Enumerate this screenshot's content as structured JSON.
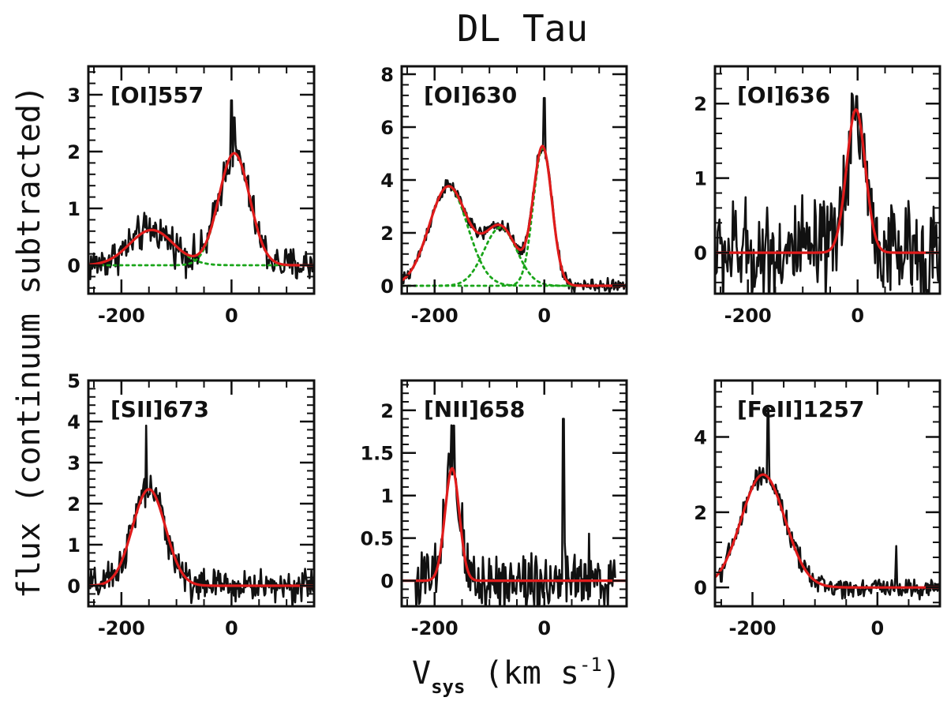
{
  "figure": {
    "title": "DL Tau",
    "xlabel_main": "V",
    "xlabel_sub": "sys",
    "xlabel_units": "(km s",
    "xlabel_exp": "-1",
    "xlabel_close": ")",
    "ylabel": "flux (continuum subtracted)"
  },
  "colors": {
    "observed": "#111111",
    "fit": "#e01b1b",
    "component": "#1aa51a"
  },
  "chart_data": [
    {
      "type": "line",
      "label": "[OI]557",
      "xlim": [
        -260,
        150
      ],
      "ylim": [
        -0.5,
        3.5
      ],
      "xticks": [
        -200,
        0
      ],
      "xticklabels": [
        "-200",
        "0"
      ],
      "yticks": [
        0,
        1,
        2,
        3
      ],
      "yticklabels": [
        "0",
        "1",
        "2",
        "3"
      ],
      "fit_components": [
        {
          "amp": 0.62,
          "center": -145,
          "sigma": 40
        },
        {
          "amp": 1.97,
          "center": 5,
          "sigma": 28
        }
      ],
      "show_components": true,
      "noise": 0.35,
      "data_range": [
        -260,
        150
      ],
      "peaks": [
        {
          "x": 0,
          "y": 2.9
        },
        {
          "x": 5,
          "y": 2.6
        }
      ]
    },
    {
      "type": "line",
      "label": "[OI]630",
      "xlim": [
        -260,
        150
      ],
      "ylim": [
        -0.3,
        8.3
      ],
      "xticks": [
        -200,
        0
      ],
      "xticklabels": [
        "-200",
        "0"
      ],
      "yticks": [
        0,
        2,
        4,
        6,
        8
      ],
      "yticklabels": [
        "0",
        "2",
        "4",
        "6",
        "8"
      ],
      "fit_components": [
        {
          "amp": 3.75,
          "center": -175,
          "sigma": 35
        },
        {
          "amp": 2.2,
          "center": -80,
          "sigma": 30
        },
        {
          "amp": 5.2,
          "center": -3,
          "sigma": 17
        }
      ],
      "show_components": true,
      "noise": 0.28,
      "data_range": [
        -260,
        150
      ],
      "peaks": [
        {
          "x": 0,
          "y": 7.1
        }
      ]
    },
    {
      "type": "line",
      "label": "[OI]636",
      "xlim": [
        -260,
        150
      ],
      "ylim": [
        -0.55,
        2.5
      ],
      "xticks": [
        -200,
        0
      ],
      "xticklabels": [
        "-200",
        "0"
      ],
      "yticks": [
        0,
        1,
        2
      ],
      "yticklabels": [
        "0",
        "1",
        "2"
      ],
      "fit_components": [
        {
          "amp": 1.92,
          "center": -3,
          "sigma": 17
        }
      ],
      "show_components": false,
      "noise": 0.75,
      "data_range": [
        -260,
        150
      ],
      "peaks": [
        {
          "x": -2,
          "y": 2.1
        }
      ]
    },
    {
      "type": "line",
      "label": "[SII]673",
      "xlim": [
        -260,
        150
      ],
      "ylim": [
        -0.5,
        5
      ],
      "xticks": [
        -200,
        0
      ],
      "xticklabels": [
        "-200",
        "0"
      ],
      "yticks": [
        0,
        1,
        2,
        3,
        4,
        5
      ],
      "yticklabels": [
        "0",
        "1",
        "2",
        "3",
        "4",
        "5"
      ],
      "fit_components": [
        {
          "amp": 2.35,
          "center": -150,
          "sigma": 30
        }
      ],
      "show_components": false,
      "noise": 0.45,
      "data_range": [
        -260,
        150
      ],
      "peaks": [
        {
          "x": -155,
          "y": 3.9
        }
      ]
    },
    {
      "type": "line",
      "label": "[NII]658",
      "xlim": [
        -260,
        150
      ],
      "ylim": [
        -0.3,
        2.35
      ],
      "xticks": [
        -200,
        0
      ],
      "xticklabels": [
        "-200",
        "0"
      ],
      "yticks": [
        0,
        0.5,
        1,
        1.5,
        2
      ],
      "yticklabels": [
        "0",
        "0.5",
        "1",
        "1.5",
        "2"
      ],
      "fit_components": [
        {
          "amp": 1.32,
          "center": -168,
          "sigma": 13
        }
      ],
      "show_components": false,
      "noise": 0.45,
      "data_range": [
        -235,
        130
      ],
      "peaks": [
        {
          "x": -165,
          "y": 1.82
        },
        {
          "x": 35,
          "y": 1.9
        }
      ]
    },
    {
      "type": "line",
      "label": "[FeII]1257",
      "xlim": [
        -260,
        100
      ],
      "ylim": [
        -0.5,
        5.5
      ],
      "xticks": [
        -200,
        0
      ],
      "xticklabels": [
        "-200",
        "0"
      ],
      "yticks": [
        0,
        2,
        4
      ],
      "yticklabels": [
        "0",
        "2",
        "4"
      ],
      "fit_components": [
        {
          "amp": 3.0,
          "center": -183,
          "sigma": 35
        }
      ],
      "show_components": false,
      "noise": 0.3,
      "data_range": [
        -255,
        100
      ],
      "peaks": [
        {
          "x": -175,
          "y": 4.75
        },
        {
          "x": 30,
          "y": 1.1
        }
      ]
    }
  ]
}
